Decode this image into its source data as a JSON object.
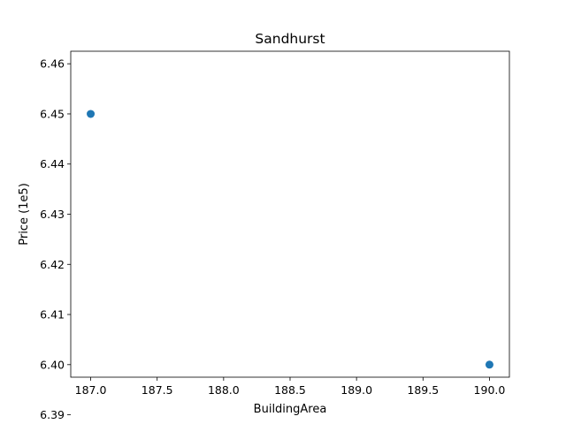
{
  "chart_data": {
    "type": "scatter",
    "title": "Sandhurst",
    "xlabel": "BuildingArea",
    "ylabel": "Price (1e5)",
    "xlim": [
      186.85,
      190.15
    ],
    "ylim": [
      6.3975,
      6.4625
    ],
    "x_ticks": [
      187.0,
      187.5,
      188.0,
      188.5,
      189.0,
      189.5,
      190.0
    ],
    "x_tick_labels": [
      "187.0",
      "187.5",
      "188.0",
      "188.5",
      "189.0",
      "189.5",
      "190.0"
    ],
    "y_ticks": [
      6.39,
      6.4,
      6.41,
      6.42,
      6.43,
      6.44,
      6.45,
      6.46
    ],
    "y_tick_labels": [
      "6.39",
      "6.40",
      "6.41",
      "6.42",
      "6.43",
      "6.44",
      "6.45",
      "6.46"
    ],
    "grid": false,
    "series": [
      {
        "points": [
          {
            "x": 187.0,
            "y": 6.45
          },
          {
            "x": 190.0,
            "y": 6.4
          }
        ],
        "color": "#1f77b4"
      }
    ]
  }
}
